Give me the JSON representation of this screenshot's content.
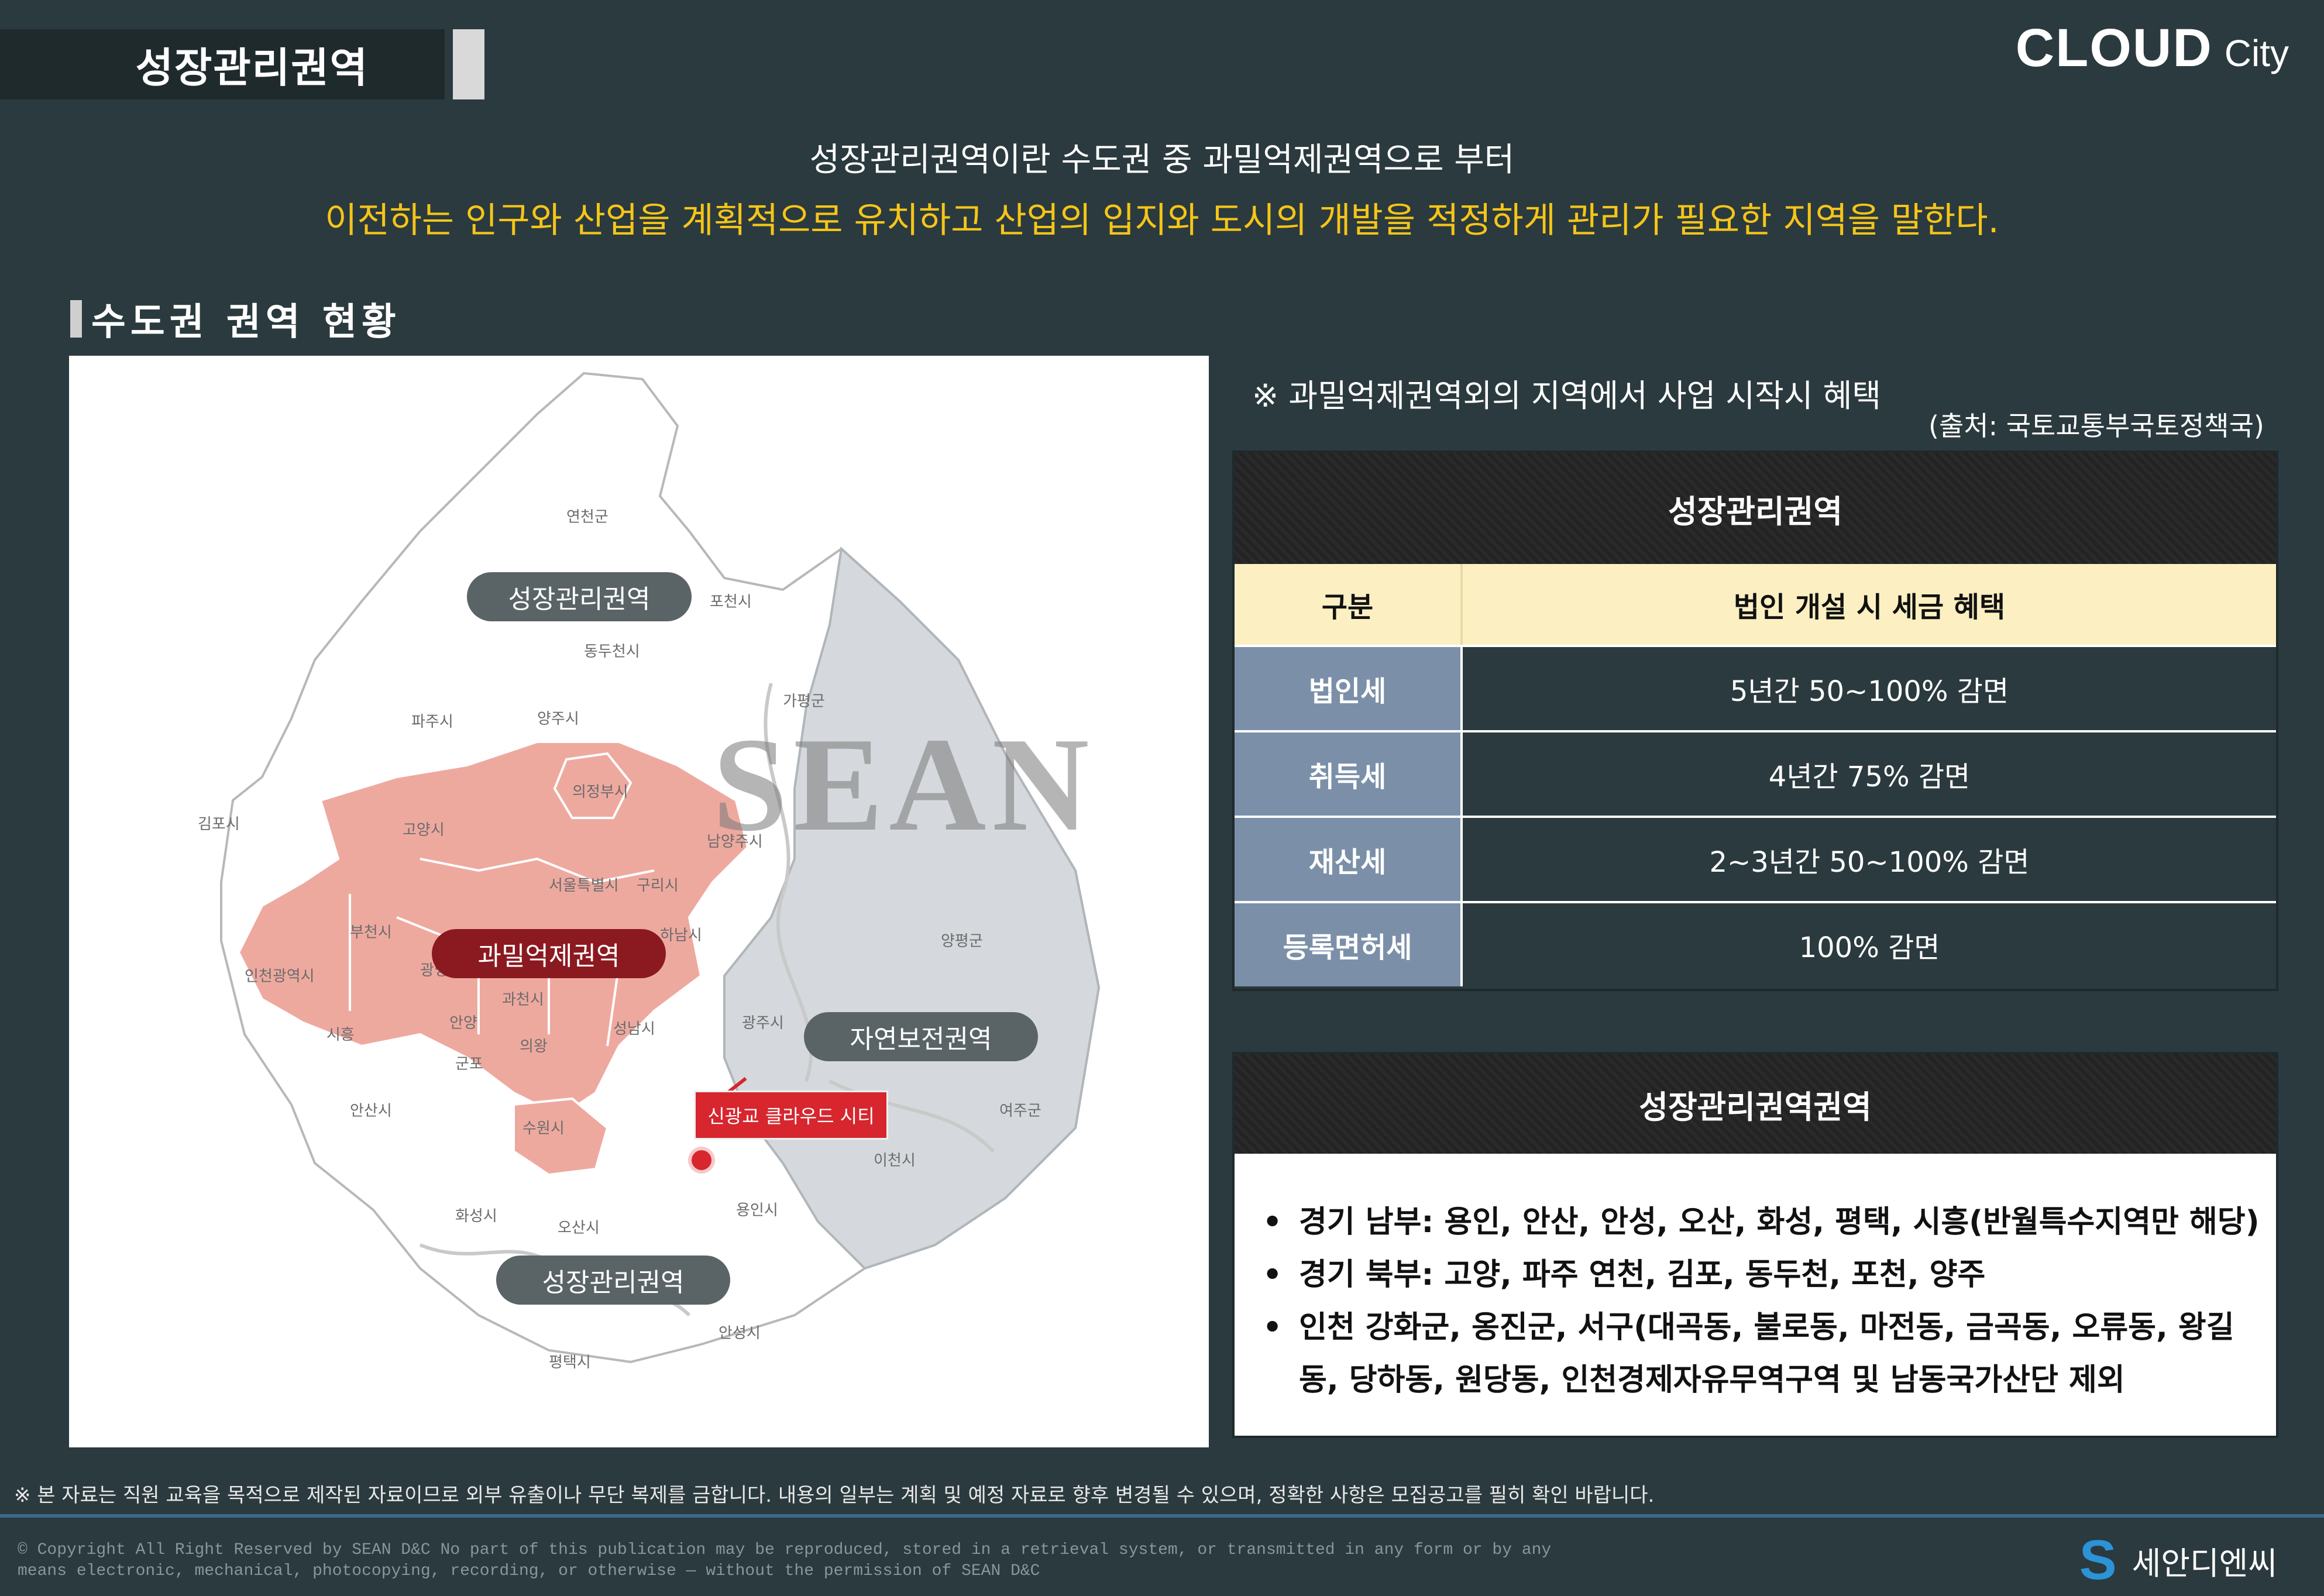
{
  "header": {
    "title": "성장관리권역",
    "brand_main": "CLOUD",
    "brand_sub": "City"
  },
  "intro": {
    "line1": "성장관리권역이란 수도권 중 과밀억제권역으로 부터",
    "line2": "이전하는 인구와 산업을 계획적으로 유치하고 산업의 입지와 도시의 개발을 적정하게 관리가 필요한 지역을 말한다."
  },
  "section": {
    "heading": "수도권 권역 현황"
  },
  "map": {
    "watermark": "SEAN",
    "region_labels": {
      "growth_top": "성장관리권역",
      "overcrowded": "과밀억제권역",
      "nature": "자연보전권역",
      "growth_bottom": "성장관리권역"
    },
    "marker_label": "신광교 클라우드 시티",
    "cities": [
      "연천군",
      "포천시",
      "동두천시",
      "파주시",
      "양주시",
      "가평군",
      "의정부시",
      "김포시",
      "고양시",
      "남양주시",
      "서울특별시",
      "구리시",
      "하남시",
      "부천시",
      "인천광역시",
      "광명시",
      "시흥",
      "안양",
      "과천시",
      "군포",
      "의왕",
      "성남시",
      "광주시",
      "양평군",
      "안산시",
      "수원시",
      "여주군",
      "이천시",
      "화성시",
      "오산시",
      "용인시",
      "안성시",
      "평택시"
    ]
  },
  "benefits": {
    "note": "※ 과밀억제권역외의 지역에서 사업 시작시 혜택",
    "source": "(출처: 국토교통부국토정책국)",
    "table_title": "성장관리권역",
    "col_headers": [
      "구분",
      "법인 개설 시 세금 혜택"
    ],
    "rows": [
      {
        "label": "법인세",
        "value": "5년간 50~100% 감면"
      },
      {
        "label": "취득세",
        "value": "4년간 75% 감면"
      },
      {
        "label": "재산세",
        "value": "2~3년간 50~100% 감면"
      },
      {
        "label": "등록면허세",
        "value": "100% 감면"
      }
    ]
  },
  "growth_regions": {
    "title": "성장관리권역권역",
    "items": [
      "경기 남부: 용인, 안산, 안성, 오산, 화성, 평택, 시흥(반월특수지역만 해당)",
      "경기 북부: 고양, 파주 연천, 김포, 동두천, 포천, 양주",
      "인천 강화군, 옹진군, 서구(대곡동, 불로동, 마전동, 금곡동, 오류동, 왕길동, 당하동, 원당동, 인천경제자유무역구역 및 남동국가산단 제외"
    ]
  },
  "footer": {
    "disclaimer": "※ 본 자료는 직원 교육을 목적으로 제작된 자료이므로 외부 유출이나 무단 복제를 금합니다. 내용의 일부는 계획 및 예정 자료로 향후 변경될 수 있으며, 정확한 사항은 모집공고를 필히 확인 바랍니다.",
    "copyright_line1": "© Copyright All Right Reserved by SEAN D&C  No part of this publication may be reproduced, stored in a retrieval system, or transmitted in any form or by any",
    "copyright_line2": "means electronic, mechanical, photocopying, recording, or otherwise — without the permission of SEAN D&C",
    "logo_text": "세안디엔씨",
    "logo_mark": "S"
  },
  "colors": {
    "background": "#2b3a3e",
    "accent_yellow": "#f5c518",
    "overcrowded_pink": "#eea99f",
    "nature_gray": "#d5d9dd",
    "label_blue": "#7b90a8",
    "marker_red": "#d7262e"
  }
}
